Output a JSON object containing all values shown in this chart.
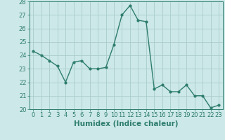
{
  "title": "",
  "xlabel": "Humidex (Indice chaleur)",
  "ylabel": "",
  "x": [
    0,
    1,
    2,
    3,
    4,
    5,
    6,
    7,
    8,
    9,
    10,
    11,
    12,
    13,
    14,
    15,
    16,
    17,
    18,
    19,
    20,
    21,
    22,
    23
  ],
  "y": [
    24.3,
    24.0,
    23.6,
    23.2,
    22.0,
    23.5,
    23.6,
    23.0,
    23.0,
    23.1,
    24.8,
    27.0,
    27.7,
    26.6,
    26.5,
    21.5,
    21.8,
    21.3,
    21.3,
    21.8,
    21.0,
    21.0,
    20.1,
    20.3
  ],
  "line_color": "#2e7d6e",
  "marker": "o",
  "marker_size": 2.0,
  "linewidth": 1.0,
  "background_color": "#cce8e8",
  "grid_color": "#aacccc",
  "ylim": [
    20,
    28
  ],
  "xlim": [
    -0.5,
    23.5
  ],
  "yticks": [
    20,
    21,
    22,
    23,
    24,
    25,
    26,
    27,
    28
  ],
  "xticks": [
    0,
    1,
    2,
    3,
    4,
    5,
    6,
    7,
    8,
    9,
    10,
    11,
    12,
    13,
    14,
    15,
    16,
    17,
    18,
    19,
    20,
    21,
    22,
    23
  ],
  "tick_fontsize": 6,
  "label_fontsize": 7.5
}
